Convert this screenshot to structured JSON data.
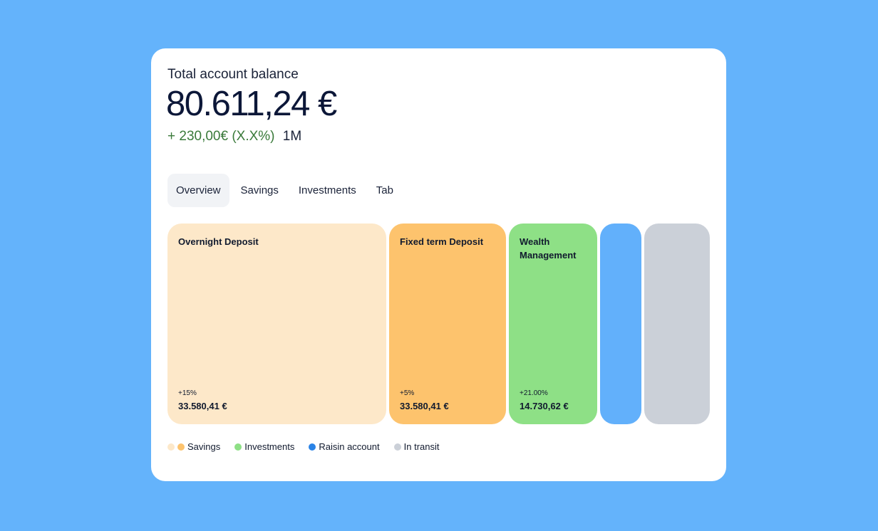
{
  "header": {
    "title": "Total account balance",
    "balance": "80.611,24 €",
    "change": "+ 230,00€ (X.X%)",
    "period": "1M"
  },
  "tabs": [
    {
      "label": "Overview",
      "active": true
    },
    {
      "label": "Savings"
    },
    {
      "label": "Investments"
    },
    {
      "label": "Tab"
    }
  ],
  "tiles": [
    {
      "name": "Overnight Deposit",
      "change": "+15%",
      "value": "33.580,41 €",
      "color": "#fde8c9"
    },
    {
      "name": "Fixed term Deposit",
      "change": "+5%",
      "value": "33.580,41 €",
      "color": "#fdc36d"
    },
    {
      "name": "Wealth Management",
      "change": "+21.00%",
      "value": "14.730,62 €",
      "color": "#8ee086"
    },
    {
      "color": "#62b0fb"
    },
    {
      "color": "#cbd0d8"
    }
  ],
  "legend": [
    {
      "label": "Savings",
      "colors": [
        "#fde8c9",
        "#fdc36d"
      ]
    },
    {
      "label": "Investments",
      "colors": [
        "#8ee086"
      ]
    },
    {
      "label": "Raisin account",
      "colors": [
        "#2a83e6"
      ]
    },
    {
      "label": "In transit",
      "colors": [
        "#cbd0d8"
      ]
    }
  ]
}
